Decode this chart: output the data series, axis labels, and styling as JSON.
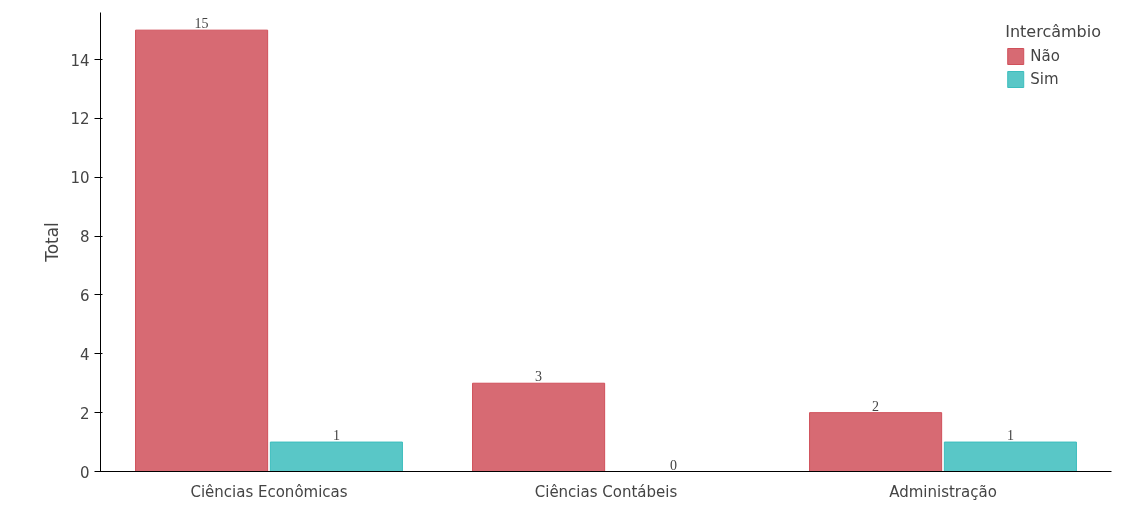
{
  "chart_data": {
    "type": "bar",
    "ylabel": "Total",
    "legend_title": "Intercâmbio",
    "categories": [
      "Ciências Econômicas",
      "Ciências Contábeis",
      "Administração"
    ],
    "series": [
      {
        "name": "Não",
        "color": "#d0505a",
        "values": [
          15,
          3,
          2
        ]
      },
      {
        "name": "Sim",
        "color": "#3cbdbd",
        "values": [
          1,
          0,
          1
        ]
      }
    ],
    "ylim": [
      0,
      15.6
    ],
    "yticks": [
      0,
      2,
      4,
      6,
      8,
      10,
      12,
      14
    ],
    "data_labels": true,
    "grid": false,
    "legend": "top right"
  }
}
